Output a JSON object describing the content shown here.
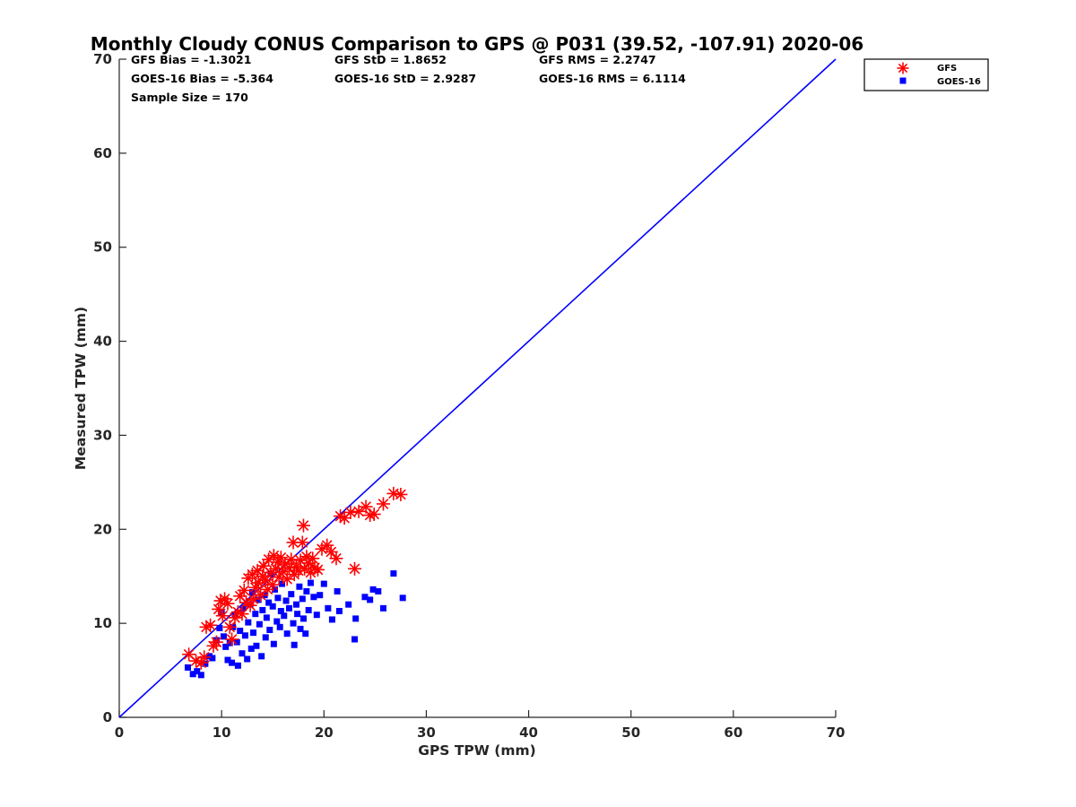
{
  "chart_data": {
    "type": "scatter",
    "title": "Monthly Cloudy CONUS Comparison to GPS @ P031 (39.52, -107.91) 2020-06",
    "xlabel": "GPS TPW (mm)",
    "ylabel": "Measured TPW (mm)",
    "xlim": [
      0,
      70
    ],
    "ylim": [
      0,
      70
    ],
    "xticks": [
      "0",
      "10",
      "20",
      "30",
      "40",
      "50",
      "60",
      "70"
    ],
    "yticks": [
      "0",
      "10",
      "20",
      "30",
      "40",
      "50",
      "60",
      "70"
    ],
    "grid": false,
    "legend_position": "top-right, outside plot",
    "reference_line": {
      "x": [
        0,
        70
      ],
      "y": [
        0,
        70
      ],
      "color": "#0000FF"
    },
    "stats": {
      "gfs_bias": "GFS Bias = -1.3021",
      "gfs_std": "GFS StD = 1.8652",
      "gfs_rms": "GFS RMS = 2.2747",
      "goes_bias": "GOES-16 Bias = -5.364",
      "goes_std": "GOES-16 StD = 2.9287",
      "goes_rms": "GOES-16 RMS = 6.1114",
      "sample_size": "Sample Size = 170"
    },
    "series": [
      {
        "name": "GFS",
        "marker": "asterisk",
        "color": "#FF0000",
        "points": [
          [
            6.8,
            6.7
          ],
          [
            7.5,
            6.0
          ],
          [
            8.0,
            5.8
          ],
          [
            8.3,
            6.4
          ],
          [
            8.5,
            9.6
          ],
          [
            8.9,
            9.8
          ],
          [
            9.2,
            7.6
          ],
          [
            9.5,
            8.0
          ],
          [
            9.7,
            11.5
          ],
          [
            9.9,
            12.4
          ],
          [
            10.1,
            10.8
          ],
          [
            10.3,
            12.6
          ],
          [
            10.6,
            12.1
          ],
          [
            10.8,
            9.6
          ],
          [
            11.0,
            8.3
          ],
          [
            11.3,
            10.6
          ],
          [
            11.6,
            11.2
          ],
          [
            11.8,
            12.9
          ],
          [
            12.0,
            11.0
          ],
          [
            12.2,
            13.5
          ],
          [
            12.4,
            12.2
          ],
          [
            12.6,
            14.8
          ],
          [
            12.8,
            11.9
          ],
          [
            13.0,
            15.2
          ],
          [
            13.1,
            12.6
          ],
          [
            13.3,
            13.8
          ],
          [
            13.5,
            15.6
          ],
          [
            13.6,
            14.3
          ],
          [
            13.8,
            13.0
          ],
          [
            14.0,
            15.0
          ],
          [
            14.1,
            16.1
          ],
          [
            14.3,
            14.6
          ],
          [
            14.5,
            13.6
          ],
          [
            14.6,
            16.8
          ],
          [
            14.8,
            15.4
          ],
          [
            15.0,
            14.1
          ],
          [
            15.1,
            17.2
          ],
          [
            15.3,
            15.8
          ],
          [
            15.5,
            16.5
          ],
          [
            15.6,
            14.9
          ],
          [
            15.8,
            17.0
          ],
          [
            16.0,
            15.5
          ],
          [
            16.2,
            16.3
          ],
          [
            16.4,
            14.7
          ],
          [
            16.6,
            15.9
          ],
          [
            16.8,
            16.8
          ],
          [
            17.0,
            18.6
          ],
          [
            17.1,
            15.2
          ],
          [
            17.3,
            16.0
          ],
          [
            17.5,
            15.6
          ],
          [
            17.7,
            16.7
          ],
          [
            17.9,
            18.6
          ],
          [
            18.0,
            20.4
          ],
          [
            18.1,
            15.8
          ],
          [
            18.3,
            17.1
          ],
          [
            18.5,
            16.4
          ],
          [
            18.7,
            15.4
          ],
          [
            18.9,
            16.9
          ],
          [
            19.1,
            15.9
          ],
          [
            19.4,
            15.7
          ],
          [
            19.8,
            17.9
          ],
          [
            20.3,
            18.3
          ],
          [
            20.7,
            17.6
          ],
          [
            21.2,
            16.9
          ],
          [
            21.6,
            21.4
          ],
          [
            22.0,
            21.2
          ],
          [
            22.6,
            21.8
          ],
          [
            23.0,
            15.8
          ],
          [
            23.4,
            21.9
          ],
          [
            24.1,
            22.4
          ],
          [
            24.5,
            21.5
          ],
          [
            24.9,
            21.6
          ],
          [
            25.8,
            22.7
          ],
          [
            26.8,
            23.8
          ],
          [
            27.5,
            23.7
          ]
        ]
      },
      {
        "name": "GOES-16",
        "marker": "square",
        "color": "#0000FF",
        "points": [
          [
            6.7,
            5.3
          ],
          [
            7.2,
            4.6
          ],
          [
            7.6,
            4.9
          ],
          [
            8.0,
            4.5
          ],
          [
            8.4,
            5.7
          ],
          [
            8.8,
            6.5
          ],
          [
            9.1,
            6.3
          ],
          [
            9.5,
            8.2
          ],
          [
            9.8,
            9.5
          ],
          [
            10.0,
            11.1
          ],
          [
            10.2,
            8.6
          ],
          [
            10.4,
            7.5
          ],
          [
            10.6,
            6.1
          ],
          [
            10.8,
            7.9
          ],
          [
            11.0,
            5.8
          ],
          [
            11.1,
            9.6
          ],
          [
            11.3,
            10.9
          ],
          [
            11.5,
            8.0
          ],
          [
            11.6,
            5.5
          ],
          [
            11.8,
            9.2
          ],
          [
            12.0,
            6.8
          ],
          [
            12.1,
            11.6
          ],
          [
            12.3,
            8.7
          ],
          [
            12.5,
            6.2
          ],
          [
            12.6,
            10.1
          ],
          [
            12.8,
            12.0
          ],
          [
            12.9,
            7.3
          ],
          [
            13.0,
            13.3
          ],
          [
            13.1,
            9.0
          ],
          [
            13.3,
            11.0
          ],
          [
            13.4,
            7.6
          ],
          [
            13.6,
            12.5
          ],
          [
            13.7,
            9.9
          ],
          [
            13.9,
            6.5
          ],
          [
            14.0,
            11.4
          ],
          [
            14.2,
            13.0
          ],
          [
            14.3,
            8.5
          ],
          [
            14.4,
            10.6
          ],
          [
            14.6,
            12.2
          ],
          [
            14.7,
            9.3
          ],
          [
            14.8,
            15.3
          ],
          [
            15.0,
            11.8
          ],
          [
            15.1,
            7.8
          ],
          [
            15.2,
            13.6
          ],
          [
            15.4,
            10.2
          ],
          [
            15.5,
            12.7
          ],
          [
            15.7,
            9.6
          ],
          [
            15.8,
            11.3
          ],
          [
            15.9,
            14.2
          ],
          [
            16.1,
            10.8
          ],
          [
            16.3,
            12.4
          ],
          [
            16.4,
            8.9
          ],
          [
            16.6,
            11.6
          ],
          [
            16.8,
            13.1
          ],
          [
            17.0,
            10.0
          ],
          [
            17.1,
            7.7
          ],
          [
            17.3,
            12.0
          ],
          [
            17.4,
            11.0
          ],
          [
            17.6,
            13.9
          ],
          [
            17.7,
            9.4
          ],
          [
            17.9,
            12.6
          ],
          [
            18.0,
            10.5
          ],
          [
            18.2,
            8.9
          ],
          [
            18.3,
            13.4
          ],
          [
            18.5,
            11.4
          ],
          [
            18.7,
            14.3
          ],
          [
            19.0,
            12.8
          ],
          [
            19.3,
            10.9
          ],
          [
            19.6,
            13.0
          ],
          [
            20.0,
            14.2
          ],
          [
            20.4,
            11.6
          ],
          [
            20.8,
            10.4
          ],
          [
            21.3,
            13.4
          ],
          [
            21.5,
            11.3
          ],
          [
            22.4,
            12.0
          ],
          [
            23.0,
            8.3
          ],
          [
            23.1,
            10.5
          ],
          [
            24.0,
            12.8
          ],
          [
            24.5,
            12.5
          ],
          [
            24.8,
            13.6
          ],
          [
            25.3,
            13.4
          ],
          [
            25.8,
            11.6
          ],
          [
            26.8,
            15.3
          ],
          [
            27.7,
            12.7
          ]
        ]
      }
    ]
  }
}
